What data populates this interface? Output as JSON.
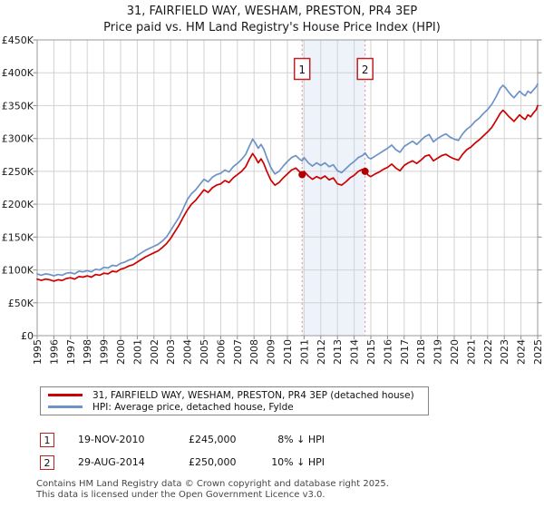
{
  "title": "31, FAIRFIELD WAY, WESHAM, PRESTON, PR4 3EP",
  "subtitle": "Price paid vs. HM Land Registry's House Price Index (HPI)",
  "legend": {
    "items": [
      {
        "label": "31, FAIRFIELD WAY, WESHAM, PRESTON, PR4 3EP (detached house)",
        "color": "#cc0000"
      },
      {
        "label": "HPI: Average price, detached house, Fylde",
        "color": "#6d93c6"
      }
    ]
  },
  "annotations": [
    {
      "num": "1",
      "date": "19-NOV-2010",
      "price": "£245,000",
      "hpi": "8% ↓ HPI"
    },
    {
      "num": "2",
      "date": "29-AUG-2014",
      "price": "£250,000",
      "hpi": "10% ↓ HPI"
    }
  ],
  "footer": {
    "line1": "Contains HM Land Registry data © Crown copyright and database right 2025.",
    "line2": "This data is licensed under the Open Government Licence v3.0."
  },
  "chart_data": {
    "type": "line",
    "title": "31, FAIRFIELD WAY, WESHAM, PRESTON, PR4 3EP",
    "subtitle": "Price paid vs. HM Land Registry's House Price Index (HPI)",
    "x_range": [
      1995,
      2025
    ],
    "y_range": [
      0,
      450000
    ],
    "grid": true,
    "legend_position": "bottom",
    "x_ticks": [
      1995,
      1996,
      1997,
      1998,
      1999,
      2000,
      2001,
      2002,
      2003,
      2004,
      2005,
      2006,
      2007,
      2008,
      2009,
      2010,
      2011,
      2012,
      2013,
      2014,
      2015,
      2016,
      2017,
      2018,
      2019,
      2020,
      2021,
      2022,
      2023,
      2024,
      2025
    ],
    "y_ticks": [
      {
        "value": 0,
        "label": "£0"
      },
      {
        "value": 50000,
        "label": "£50K"
      },
      {
        "value": 100000,
        "label": "£100K"
      },
      {
        "value": 150000,
        "label": "£150K"
      },
      {
        "value": 200000,
        "label": "£200K"
      },
      {
        "value": 250000,
        "label": "£250K"
      },
      {
        "value": 300000,
        "label": "£300K"
      },
      {
        "value": 350000,
        "label": "£350K"
      },
      {
        "value": 400000,
        "label": "£400K"
      },
      {
        "value": 450000,
        "label": "£450K"
      }
    ],
    "shaded_region": {
      "x0": 2010.88,
      "x1": 2014.66,
      "color": "#edf2fb"
    },
    "marker_line_color": "#ee8888",
    "markers": [
      {
        "label": "1",
        "x": 2010.88,
        "value": 245000,
        "date": "19-NOV-2010"
      },
      {
        "label": "2",
        "x": 2014.66,
        "value": 250000,
        "date": "29-AUG-2014"
      }
    ],
    "series": [
      {
        "name": "HPI: Average price, detached house, Fylde",
        "color": "#6d93c6",
        "points": [
          [
            1995.0,
            94000
          ],
          [
            1995.25,
            92000
          ],
          [
            1995.5,
            94000
          ],
          [
            1995.75,
            93000
          ],
          [
            1996.0,
            91000
          ],
          [
            1996.25,
            93000
          ],
          [
            1996.5,
            92000
          ],
          [
            1996.75,
            95000
          ],
          [
            1997.0,
            96000
          ],
          [
            1997.25,
            94000
          ],
          [
            1997.5,
            98000
          ],
          [
            1997.75,
            97000
          ],
          [
            1998.0,
            99000
          ],
          [
            1998.25,
            97000
          ],
          [
            1998.5,
            101000
          ],
          [
            1998.75,
            100000
          ],
          [
            1999.0,
            104000
          ],
          [
            1999.25,
            103000
          ],
          [
            1999.5,
            107000
          ],
          [
            1999.75,
            106000
          ],
          [
            2000.0,
            110000
          ],
          [
            2000.25,
            112000
          ],
          [
            2000.5,
            115000
          ],
          [
            2000.75,
            117000
          ],
          [
            2001.0,
            122000
          ],
          [
            2001.25,
            126000
          ],
          [
            2001.5,
            130000
          ],
          [
            2001.75,
            133000
          ],
          [
            2002.0,
            136000
          ],
          [
            2002.25,
            139000
          ],
          [
            2002.5,
            144000
          ],
          [
            2002.75,
            150000
          ],
          [
            2003.0,
            160000
          ],
          [
            2003.25,
            170000
          ],
          [
            2003.5,
            180000
          ],
          [
            2003.75,
            193000
          ],
          [
            2004.0,
            207000
          ],
          [
            2004.25,
            216000
          ],
          [
            2004.5,
            222000
          ],
          [
            2004.75,
            230000
          ],
          [
            2005.0,
            238000
          ],
          [
            2005.25,
            234000
          ],
          [
            2005.5,
            241000
          ],
          [
            2005.75,
            245000
          ],
          [
            2006.0,
            247000
          ],
          [
            2006.25,
            252000
          ],
          [
            2006.5,
            249000
          ],
          [
            2006.75,
            257000
          ],
          [
            2007.0,
            262000
          ],
          [
            2007.25,
            268000
          ],
          [
            2007.5,
            276000
          ],
          [
            2007.75,
            290000
          ],
          [
            2007.92,
            299000
          ],
          [
            2008.08,
            293000
          ],
          [
            2008.25,
            285000
          ],
          [
            2008.42,
            291000
          ],
          [
            2008.58,
            284000
          ],
          [
            2008.75,
            272000
          ],
          [
            2009.0,
            256000
          ],
          [
            2009.25,
            246000
          ],
          [
            2009.5,
            250000
          ],
          [
            2009.75,
            258000
          ],
          [
            2010.0,
            265000
          ],
          [
            2010.25,
            271000
          ],
          [
            2010.5,
            274000
          ],
          [
            2010.75,
            268000
          ],
          [
            2010.88,
            266000
          ],
          [
            2011.0,
            271000
          ],
          [
            2011.25,
            263000
          ],
          [
            2011.5,
            258000
          ],
          [
            2011.75,
            263000
          ],
          [
            2012.0,
            259000
          ],
          [
            2012.25,
            263000
          ],
          [
            2012.5,
            257000
          ],
          [
            2012.75,
            260000
          ],
          [
            2013.0,
            251000
          ],
          [
            2013.25,
            248000
          ],
          [
            2013.5,
            254000
          ],
          [
            2013.75,
            260000
          ],
          [
            2014.0,
            265000
          ],
          [
            2014.25,
            271000
          ],
          [
            2014.5,
            274000
          ],
          [
            2014.66,
            278000
          ],
          [
            2014.85,
            271000
          ],
          [
            2015.0,
            269000
          ],
          [
            2015.25,
            273000
          ],
          [
            2015.5,
            277000
          ],
          [
            2015.75,
            281000
          ],
          [
            2016.0,
            285000
          ],
          [
            2016.25,
            290000
          ],
          [
            2016.5,
            283000
          ],
          [
            2016.75,
            279000
          ],
          [
            2017.0,
            288000
          ],
          [
            2017.25,
            292000
          ],
          [
            2017.5,
            296000
          ],
          [
            2017.75,
            291000
          ],
          [
            2018.0,
            297000
          ],
          [
            2018.25,
            303000
          ],
          [
            2018.5,
            306000
          ],
          [
            2018.75,
            295000
          ],
          [
            2019.0,
            300000
          ],
          [
            2019.25,
            304000
          ],
          [
            2019.5,
            307000
          ],
          [
            2019.75,
            302000
          ],
          [
            2020.0,
            299000
          ],
          [
            2020.25,
            297000
          ],
          [
            2020.5,
            307000
          ],
          [
            2020.75,
            314000
          ],
          [
            2021.0,
            319000
          ],
          [
            2021.25,
            326000
          ],
          [
            2021.5,
            331000
          ],
          [
            2021.75,
            338000
          ],
          [
            2022.0,
            344000
          ],
          [
            2022.25,
            352000
          ],
          [
            2022.5,
            363000
          ],
          [
            2022.75,
            376000
          ],
          [
            2022.92,
            381000
          ],
          [
            2023.08,
            377000
          ],
          [
            2023.25,
            371000
          ],
          [
            2023.42,
            366000
          ],
          [
            2023.58,
            362000
          ],
          [
            2023.75,
            367000
          ],
          [
            2023.92,
            372000
          ],
          [
            2024.08,
            368000
          ],
          [
            2024.25,
            365000
          ],
          [
            2024.42,
            372000
          ],
          [
            2024.58,
            369000
          ],
          [
            2024.75,
            374000
          ],
          [
            2024.92,
            379000
          ],
          [
            2025.0,
            383000
          ]
        ]
      },
      {
        "name": "31, FAIRFIELD WAY, WESHAM, PRESTON, PR4 3EP (detached house)",
        "color": "#cc0000",
        "points": [
          [
            1995.0,
            86000
          ],
          [
            1995.25,
            84000
          ],
          [
            1995.5,
            86000
          ],
          [
            1995.75,
            85000
          ],
          [
            1996.0,
            83000
          ],
          [
            1996.25,
            85000
          ],
          [
            1996.5,
            84000
          ],
          [
            1996.75,
            87000
          ],
          [
            1997.0,
            88000
          ],
          [
            1997.25,
            86000
          ],
          [
            1997.5,
            90000
          ],
          [
            1997.75,
            89000
          ],
          [
            1998.0,
            91000
          ],
          [
            1998.25,
            89000
          ],
          [
            1998.5,
            93000
          ],
          [
            1998.75,
            92000
          ],
          [
            1999.0,
            95000
          ],
          [
            1999.25,
            94000
          ],
          [
            1999.5,
            98000
          ],
          [
            1999.75,
            97000
          ],
          [
            2000.0,
            101000
          ],
          [
            2000.25,
            103000
          ],
          [
            2000.5,
            106000
          ],
          [
            2000.75,
            108000
          ],
          [
            2001.0,
            112000
          ],
          [
            2001.25,
            116000
          ],
          [
            2001.5,
            120000
          ],
          [
            2001.75,
            123000
          ],
          [
            2002.0,
            126000
          ],
          [
            2002.25,
            129000
          ],
          [
            2002.5,
            134000
          ],
          [
            2002.75,
            140000
          ],
          [
            2003.0,
            148000
          ],
          [
            2003.25,
            158000
          ],
          [
            2003.5,
            168000
          ],
          [
            2003.75,
            180000
          ],
          [
            2004.0,
            191000
          ],
          [
            2004.25,
            200000
          ],
          [
            2004.5,
            206000
          ],
          [
            2004.75,
            214000
          ],
          [
            2005.0,
            222000
          ],
          [
            2005.25,
            218000
          ],
          [
            2005.5,
            225000
          ],
          [
            2005.75,
            229000
          ],
          [
            2006.0,
            231000
          ],
          [
            2006.25,
            236000
          ],
          [
            2006.5,
            233000
          ],
          [
            2006.75,
            240000
          ],
          [
            2007.0,
            245000
          ],
          [
            2007.25,
            250000
          ],
          [
            2007.5,
            257000
          ],
          [
            2007.75,
            270000
          ],
          [
            2007.92,
            277000
          ],
          [
            2008.08,
            271000
          ],
          [
            2008.25,
            263000
          ],
          [
            2008.42,
            269000
          ],
          [
            2008.58,
            262000
          ],
          [
            2008.75,
            251000
          ],
          [
            2009.0,
            237000
          ],
          [
            2009.25,
            229000
          ],
          [
            2009.5,
            233000
          ],
          [
            2009.75,
            240000
          ],
          [
            2010.0,
            246000
          ],
          [
            2010.25,
            252000
          ],
          [
            2010.5,
            255000
          ],
          [
            2010.75,
            249000
          ],
          [
            2010.88,
            245000
          ],
          [
            2011.0,
            250000
          ],
          [
            2011.25,
            243000
          ],
          [
            2011.5,
            238000
          ],
          [
            2011.75,
            242000
          ],
          [
            2012.0,
            239000
          ],
          [
            2012.25,
            243000
          ],
          [
            2012.5,
            237000
          ],
          [
            2012.75,
            240000
          ],
          [
            2013.0,
            231000
          ],
          [
            2013.25,
            229000
          ],
          [
            2013.5,
            234000
          ],
          [
            2013.75,
            240000
          ],
          [
            2014.0,
            244000
          ],
          [
            2014.25,
            250000
          ],
          [
            2014.5,
            253000
          ],
          [
            2014.66,
            250000
          ],
          [
            2014.85,
            244000
          ],
          [
            2015.0,
            242000
          ],
          [
            2015.25,
            246000
          ],
          [
            2015.5,
            249000
          ],
          [
            2015.75,
            253000
          ],
          [
            2016.0,
            256000
          ],
          [
            2016.25,
            261000
          ],
          [
            2016.5,
            255000
          ],
          [
            2016.75,
            251000
          ],
          [
            2017.0,
            259000
          ],
          [
            2017.25,
            263000
          ],
          [
            2017.5,
            266000
          ],
          [
            2017.75,
            262000
          ],
          [
            2018.0,
            267000
          ],
          [
            2018.25,
            273000
          ],
          [
            2018.5,
            275000
          ],
          [
            2018.75,
            266000
          ],
          [
            2019.0,
            270000
          ],
          [
            2019.25,
            274000
          ],
          [
            2019.5,
            276000
          ],
          [
            2019.75,
            272000
          ],
          [
            2020.0,
            269000
          ],
          [
            2020.25,
            267000
          ],
          [
            2020.5,
            276000
          ],
          [
            2020.75,
            283000
          ],
          [
            2021.0,
            287000
          ],
          [
            2021.25,
            293000
          ],
          [
            2021.5,
            298000
          ],
          [
            2021.75,
            304000
          ],
          [
            2022.0,
            310000
          ],
          [
            2022.25,
            317000
          ],
          [
            2022.5,
            327000
          ],
          [
            2022.75,
            338000
          ],
          [
            2022.92,
            343000
          ],
          [
            2023.08,
            339000
          ],
          [
            2023.25,
            334000
          ],
          [
            2023.42,
            330000
          ],
          [
            2023.58,
            326000
          ],
          [
            2023.75,
            331000
          ],
          [
            2023.92,
            336000
          ],
          [
            2024.08,
            332000
          ],
          [
            2024.25,
            329000
          ],
          [
            2024.42,
            336000
          ],
          [
            2024.58,
            333000
          ],
          [
            2024.75,
            339000
          ],
          [
            2024.92,
            344000
          ],
          [
            2025.0,
            350000
          ]
        ]
      }
    ]
  }
}
